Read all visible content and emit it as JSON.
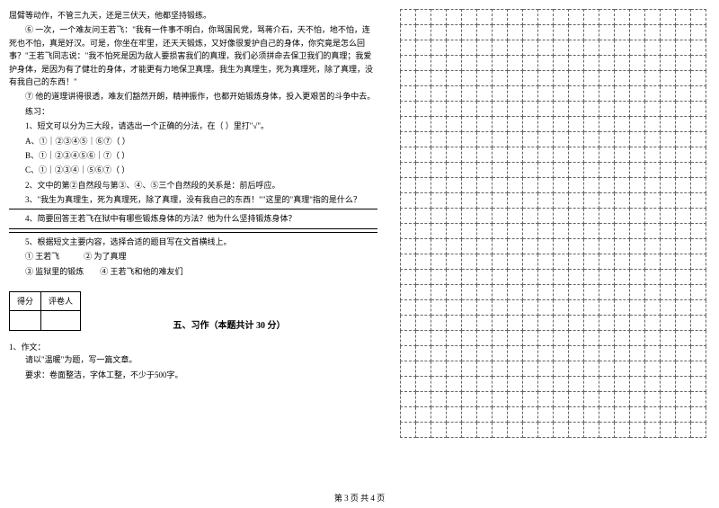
{
  "left": {
    "para1": "屈臂等动作，不管三九天，还是三伏天，他都坚持锻练。",
    "para2": "⑥ 一次，一个难友问王若飞：\"我有一件事不明白，你骂国民党，骂蒋介石，天不怕，地不怕，连死也不怕，真是好汉。可是，你坐在牢里，还天天锻炼，又好像很爱护自己的身体，你究竟是怎么回事？\"王若飞同志说：\"我不怕死是因为敌人要损害我们的真理，我们必须拼命去保卫我们的真理；我爱护身体，是因为有了健壮的身体，才能更有力地保卫真理。我生为真理生，死为真理死，除了真理，没有我自己的东西！\"",
    "para3": "⑦ 他的道理讲得很透，难友们豁然开朗，精神振作，也都开始锻炼身体，投入更艰苦的斗争中去。",
    "exercise_label": "练习：",
    "q1": "1、短文可以分为三大段，请选出一个正确的分法，在（  ）里打\"√\"。",
    "q1a": "A、①｜②③④⑤｜⑥⑦（  ）",
    "q1b": "B、①｜②③④⑤⑥｜⑦（  ）",
    "q1c": "C、①｜②③④｜⑤⑥⑦（  ）",
    "q2": "2、文中的第②自然段与第③、④、⑤三个自然段的关系是：前后呼应。",
    "q3": "3、\"我生为真理生，死为真理死，除了真理，没有我自己的东西！\"\"这里的\"真理\"指的是什么？",
    "q4": "4、简要回答王若飞在狱中有哪些锻炼身体的方法？他为什么坚持锻炼身体？",
    "q5": "5、根据短文主要内容，选择合适的题目写在文首横线上。",
    "q5a": "① 王若飞",
    "q5b": "② 为了真理",
    "q5c": "③ 监狱里的锻炼",
    "q5d": "④ 王若飞和他的难友们",
    "score_label1": "得分",
    "score_label2": "评卷人",
    "section_title": "五、习作（本题共计 30 分）",
    "essay_num": "1、作文：",
    "essay_prompt": "请以\"温暖\"为题，写一篇文章。",
    "essay_req": "要求：卷面整洁，字体工整，不少于500字。"
  },
  "grid": {
    "rows": 28,
    "cols": 20,
    "cell_size": 17,
    "border_color": "#666666",
    "border_style": "dashed"
  },
  "footer": "第 3 页 共 4 页",
  "colors": {
    "background": "#ffffff",
    "text": "#000000"
  }
}
